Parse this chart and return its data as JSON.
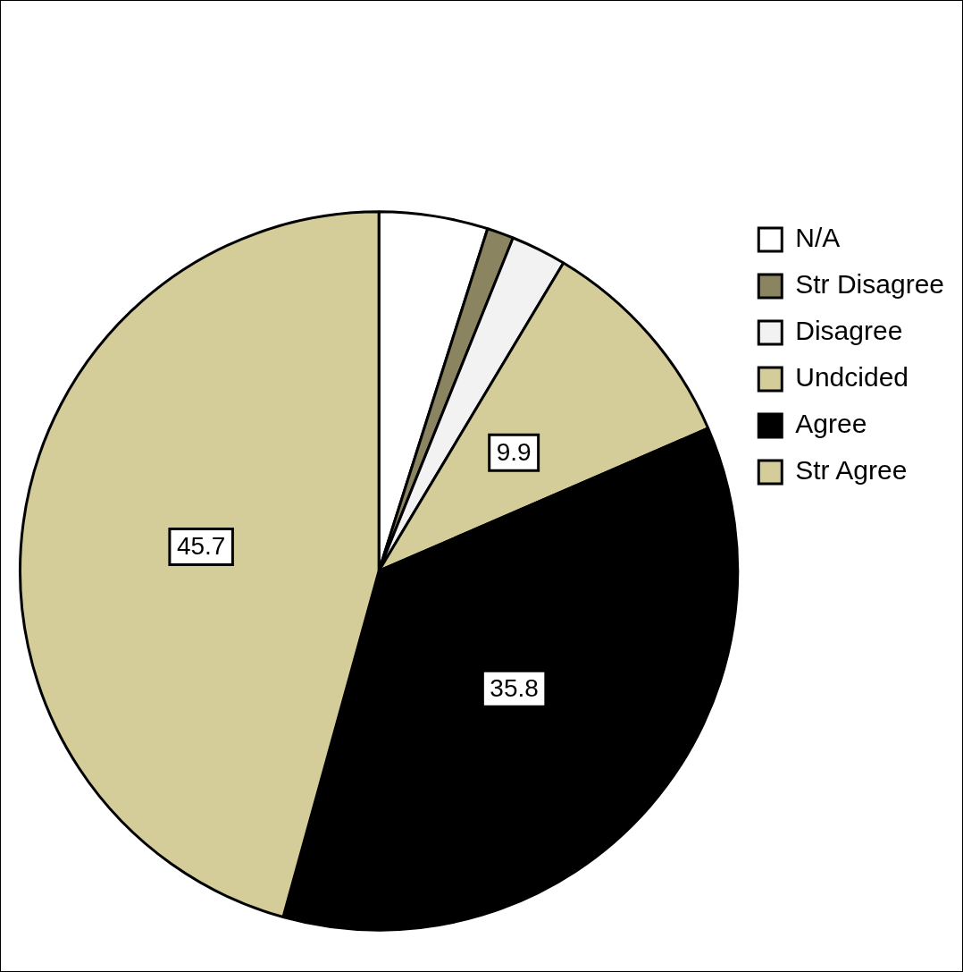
{
  "chart_data": {
    "type": "pie",
    "categories": [
      "N/A",
      "Str Disagree",
      "Disagree",
      "Undcided",
      "Agree",
      "Str Agree"
    ],
    "values": [
      4.9,
      1.2,
      2.5,
      9.9,
      35.8,
      45.7
    ],
    "colors": [
      "#ffffff",
      "#8a8460",
      "#f2f2f2",
      "#d4cd9a",
      "#000000",
      "#d4cd9a"
    ],
    "value_labels": [
      null,
      null,
      null,
      "9.9",
      "35.8",
      "45.7"
    ],
    "legend": "right"
  }
}
